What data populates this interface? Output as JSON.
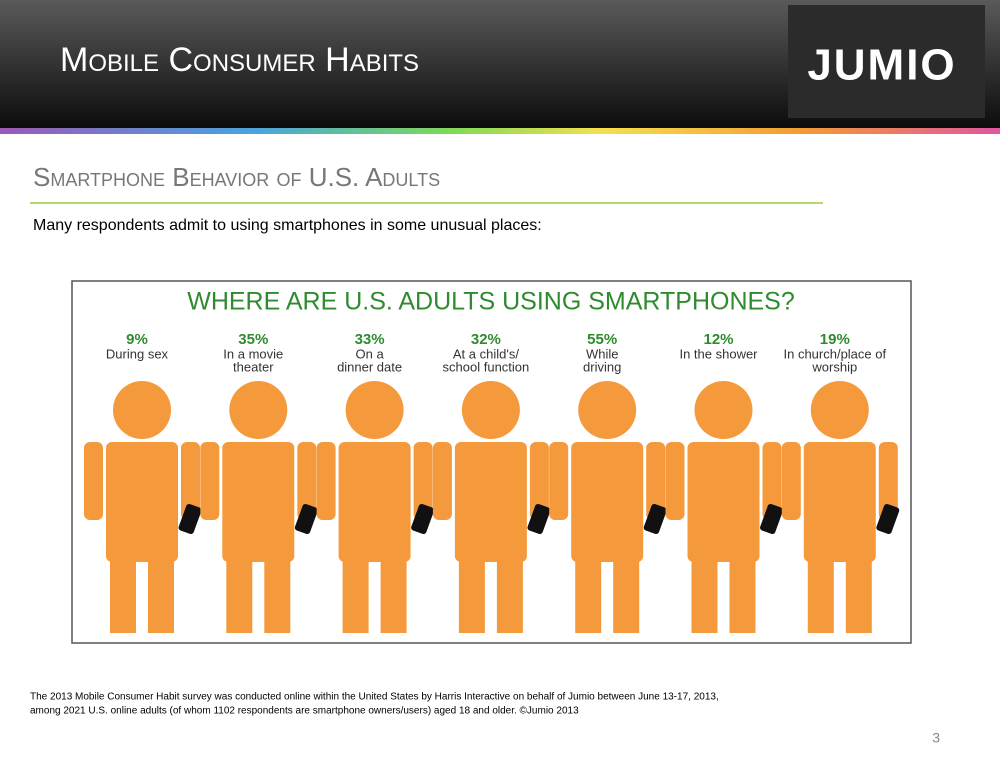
{
  "header": {
    "title": "Mobile Consumer Habits",
    "logo": "JUMIO"
  },
  "section": {
    "title": "Smartphone Behavior of U.S. Adults",
    "intro": "Many respondents admit to using smartphones in some unusual places:"
  },
  "infographic": {
    "title": "WHERE ARE U.S. ADULTS USING SMARTPHONES?",
    "items": [
      {
        "stat": "9%",
        "label": [
          "During sex"
        ]
      },
      {
        "stat": "35%",
        "label": [
          "In a movie",
          "theater"
        ]
      },
      {
        "stat": "33%",
        "label": [
          "On a",
          "dinner date"
        ]
      },
      {
        "stat": "32%",
        "label": [
          "At a child's/",
          "school function"
        ]
      },
      {
        "stat": "55%",
        "label": [
          "While",
          "driving"
        ]
      },
      {
        "stat": "12%",
        "label": [
          "In the shower"
        ]
      },
      {
        "stat": "19%",
        "label": [
          "In church/place of",
          "worship"
        ]
      }
    ]
  },
  "footnote": [
    "The 2013 Mobile Consumer Habit survey was conducted online within the United States by Harris Interactive on behalf of Jumio between June 13-17, 2013,",
    "among 2021 U.S. online adults (of whom 1102 respondents are smartphone owners/users) aged 18 and older. ©Jumio 2013"
  ],
  "page_number": "3"
}
